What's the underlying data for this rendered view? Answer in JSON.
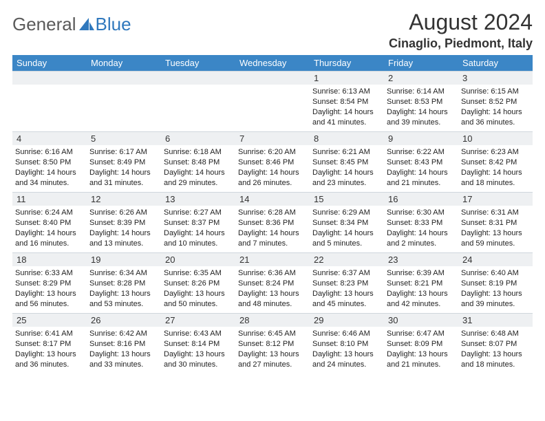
{
  "logo": {
    "word1": "General",
    "word2": "Blue"
  },
  "title": "August 2024",
  "location": "Cinaglio, Piedmont, Italy",
  "colors": {
    "header_bg": "#3b86c6",
    "header_text": "#ffffff",
    "daynum_bg": "#eef0f2",
    "border": "#cfd6dc",
    "logo_gray": "#5a5a5a",
    "logo_blue": "#2f78bd"
  },
  "daysOfWeek": [
    "Sunday",
    "Monday",
    "Tuesday",
    "Wednesday",
    "Thursday",
    "Friday",
    "Saturday"
  ],
  "grid": [
    [
      null,
      null,
      null,
      null,
      {
        "n": "1",
        "sunrise": "Sunrise: 6:13 AM",
        "sunset": "Sunset: 8:54 PM",
        "daylight": "Daylight: 14 hours and 41 minutes."
      },
      {
        "n": "2",
        "sunrise": "Sunrise: 6:14 AM",
        "sunset": "Sunset: 8:53 PM",
        "daylight": "Daylight: 14 hours and 39 minutes."
      },
      {
        "n": "3",
        "sunrise": "Sunrise: 6:15 AM",
        "sunset": "Sunset: 8:52 PM",
        "daylight": "Daylight: 14 hours and 36 minutes."
      }
    ],
    [
      {
        "n": "4",
        "sunrise": "Sunrise: 6:16 AM",
        "sunset": "Sunset: 8:50 PM",
        "daylight": "Daylight: 14 hours and 34 minutes."
      },
      {
        "n": "5",
        "sunrise": "Sunrise: 6:17 AM",
        "sunset": "Sunset: 8:49 PM",
        "daylight": "Daylight: 14 hours and 31 minutes."
      },
      {
        "n": "6",
        "sunrise": "Sunrise: 6:18 AM",
        "sunset": "Sunset: 8:48 PM",
        "daylight": "Daylight: 14 hours and 29 minutes."
      },
      {
        "n": "7",
        "sunrise": "Sunrise: 6:20 AM",
        "sunset": "Sunset: 8:46 PM",
        "daylight": "Daylight: 14 hours and 26 minutes."
      },
      {
        "n": "8",
        "sunrise": "Sunrise: 6:21 AM",
        "sunset": "Sunset: 8:45 PM",
        "daylight": "Daylight: 14 hours and 23 minutes."
      },
      {
        "n": "9",
        "sunrise": "Sunrise: 6:22 AM",
        "sunset": "Sunset: 8:43 PM",
        "daylight": "Daylight: 14 hours and 21 minutes."
      },
      {
        "n": "10",
        "sunrise": "Sunrise: 6:23 AM",
        "sunset": "Sunset: 8:42 PM",
        "daylight": "Daylight: 14 hours and 18 minutes."
      }
    ],
    [
      {
        "n": "11",
        "sunrise": "Sunrise: 6:24 AM",
        "sunset": "Sunset: 8:40 PM",
        "daylight": "Daylight: 14 hours and 16 minutes."
      },
      {
        "n": "12",
        "sunrise": "Sunrise: 6:26 AM",
        "sunset": "Sunset: 8:39 PM",
        "daylight": "Daylight: 14 hours and 13 minutes."
      },
      {
        "n": "13",
        "sunrise": "Sunrise: 6:27 AM",
        "sunset": "Sunset: 8:37 PM",
        "daylight": "Daylight: 14 hours and 10 minutes."
      },
      {
        "n": "14",
        "sunrise": "Sunrise: 6:28 AM",
        "sunset": "Sunset: 8:36 PM",
        "daylight": "Daylight: 14 hours and 7 minutes."
      },
      {
        "n": "15",
        "sunrise": "Sunrise: 6:29 AM",
        "sunset": "Sunset: 8:34 PM",
        "daylight": "Daylight: 14 hours and 5 minutes."
      },
      {
        "n": "16",
        "sunrise": "Sunrise: 6:30 AM",
        "sunset": "Sunset: 8:33 PM",
        "daylight": "Daylight: 14 hours and 2 minutes."
      },
      {
        "n": "17",
        "sunrise": "Sunrise: 6:31 AM",
        "sunset": "Sunset: 8:31 PM",
        "daylight": "Daylight: 13 hours and 59 minutes."
      }
    ],
    [
      {
        "n": "18",
        "sunrise": "Sunrise: 6:33 AM",
        "sunset": "Sunset: 8:29 PM",
        "daylight": "Daylight: 13 hours and 56 minutes."
      },
      {
        "n": "19",
        "sunrise": "Sunrise: 6:34 AM",
        "sunset": "Sunset: 8:28 PM",
        "daylight": "Daylight: 13 hours and 53 minutes."
      },
      {
        "n": "20",
        "sunrise": "Sunrise: 6:35 AM",
        "sunset": "Sunset: 8:26 PM",
        "daylight": "Daylight: 13 hours and 50 minutes."
      },
      {
        "n": "21",
        "sunrise": "Sunrise: 6:36 AM",
        "sunset": "Sunset: 8:24 PM",
        "daylight": "Daylight: 13 hours and 48 minutes."
      },
      {
        "n": "22",
        "sunrise": "Sunrise: 6:37 AM",
        "sunset": "Sunset: 8:23 PM",
        "daylight": "Daylight: 13 hours and 45 minutes."
      },
      {
        "n": "23",
        "sunrise": "Sunrise: 6:39 AM",
        "sunset": "Sunset: 8:21 PM",
        "daylight": "Daylight: 13 hours and 42 minutes."
      },
      {
        "n": "24",
        "sunrise": "Sunrise: 6:40 AM",
        "sunset": "Sunset: 8:19 PM",
        "daylight": "Daylight: 13 hours and 39 minutes."
      }
    ],
    [
      {
        "n": "25",
        "sunrise": "Sunrise: 6:41 AM",
        "sunset": "Sunset: 8:17 PM",
        "daylight": "Daylight: 13 hours and 36 minutes."
      },
      {
        "n": "26",
        "sunrise": "Sunrise: 6:42 AM",
        "sunset": "Sunset: 8:16 PM",
        "daylight": "Daylight: 13 hours and 33 minutes."
      },
      {
        "n": "27",
        "sunrise": "Sunrise: 6:43 AM",
        "sunset": "Sunset: 8:14 PM",
        "daylight": "Daylight: 13 hours and 30 minutes."
      },
      {
        "n": "28",
        "sunrise": "Sunrise: 6:45 AM",
        "sunset": "Sunset: 8:12 PM",
        "daylight": "Daylight: 13 hours and 27 minutes."
      },
      {
        "n": "29",
        "sunrise": "Sunrise: 6:46 AM",
        "sunset": "Sunset: 8:10 PM",
        "daylight": "Daylight: 13 hours and 24 minutes."
      },
      {
        "n": "30",
        "sunrise": "Sunrise: 6:47 AM",
        "sunset": "Sunset: 8:09 PM",
        "daylight": "Daylight: 13 hours and 21 minutes."
      },
      {
        "n": "31",
        "sunrise": "Sunrise: 6:48 AM",
        "sunset": "Sunset: 8:07 PM",
        "daylight": "Daylight: 13 hours and 18 minutes."
      }
    ]
  ]
}
